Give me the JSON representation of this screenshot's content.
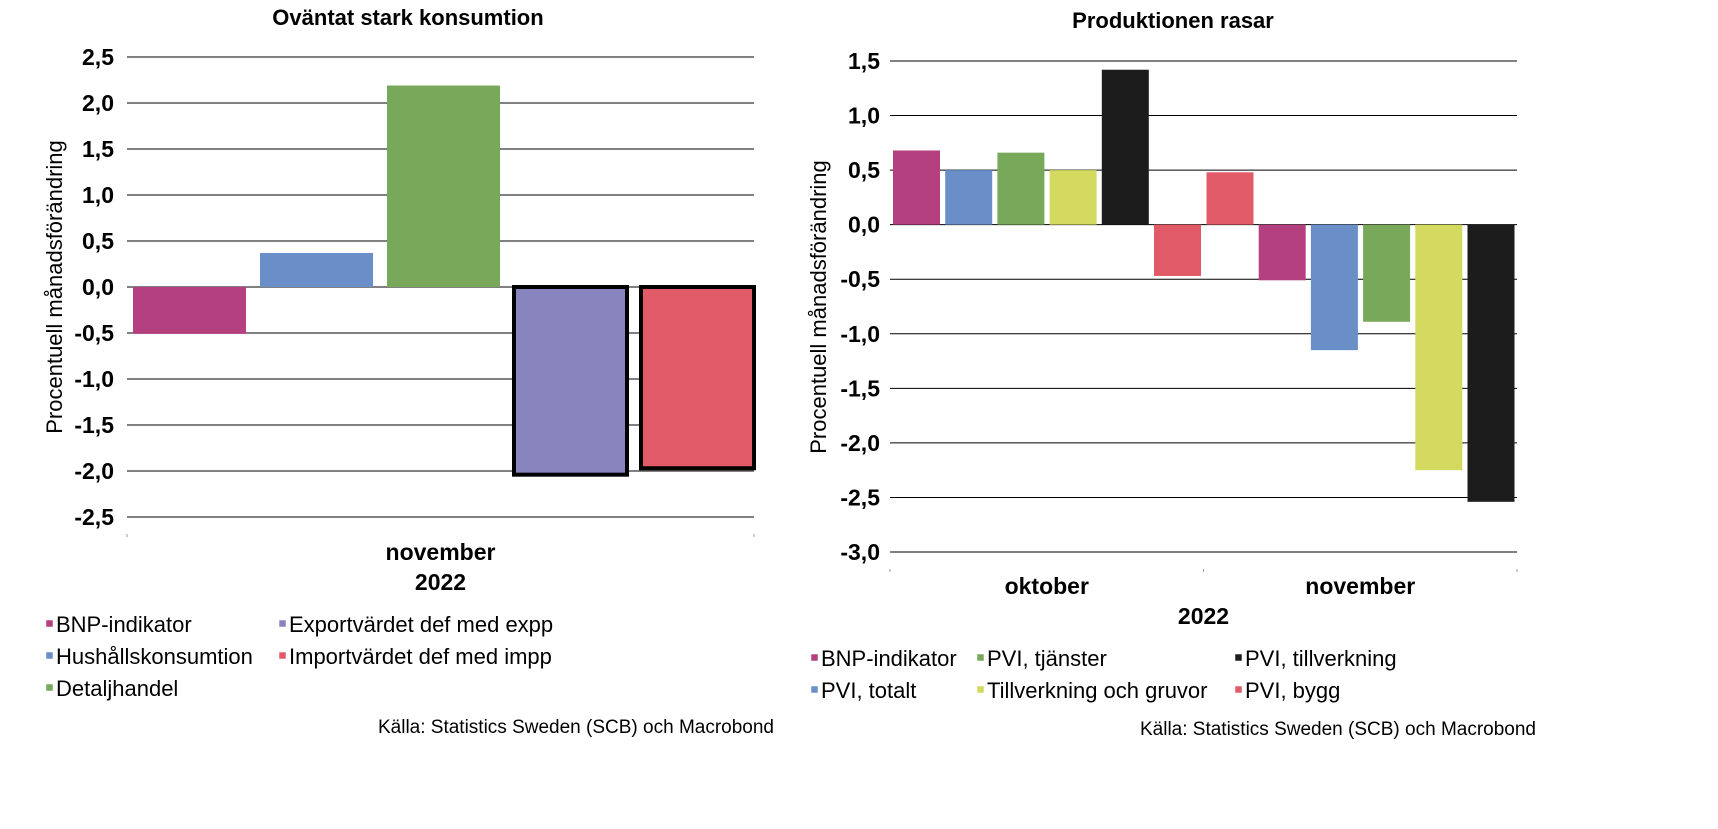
{
  "charts": [
    {
      "source": "Källa: Statistics Sweden (SCB) och Macrobond",
      "chart_data": {
        "type": "bar",
        "title": "Oväntat stark konsumtion",
        "ylabel": "Procentuell månadsförändring",
        "xlabel": "",
        "ylim": [
          -2.5,
          2.5
        ],
        "yticks": [
          "2,5",
          "2,0",
          "1,5",
          "1,0",
          "0,5",
          "0,0",
          "-0,5",
          "-1,0",
          "-1,5",
          "-2,0",
          "-2,5"
        ],
        "ytick_values": [
          2.5,
          2.0,
          1.5,
          1.0,
          0.5,
          0.0,
          -0.5,
          -1.0,
          -1.5,
          -2.0,
          -2.5
        ],
        "categories": [
          "november"
        ],
        "year_label": "2022",
        "grid": true,
        "legend_position": "bottom",
        "series": [
          {
            "name": "BNP-indikator",
            "color": "#b5407f",
            "values": [
              -0.51
            ],
            "outlined": false
          },
          {
            "name": "Hushållskonsumtion",
            "color": "#6a8fc8",
            "values": [
              0.37
            ],
            "outlined": false
          },
          {
            "name": "Detaljhandel",
            "color": "#78a85a",
            "values": [
              2.19
            ],
            "outlined": false
          },
          {
            "name": "Exportvärdet def med expp",
            "color": "#8884bd",
            "values": [
              -2.04
            ],
            "outlined": true
          },
          {
            "name": "Importvärdet def med impp",
            "color": "#e05a68",
            "values": [
              -1.97
            ],
            "outlined": true
          }
        ],
        "legend": [
          [
            "BNP-indikator",
            "Exportvärdet def med expp"
          ],
          [
            "Hushållskonsumtion",
            "Importvärdet def med impp"
          ],
          [
            "Detaljhandel"
          ]
        ]
      }
    },
    {
      "source": "Källa: Statistics Sweden (SCB) och Macrobond",
      "chart_data": {
        "type": "bar",
        "title": "Produktionen rasar",
        "ylabel": "Procentuell månadsförändring",
        "xlabel": "",
        "ylim": [
          -3.0,
          1.5
        ],
        "yticks": [
          "1,5",
          "1,0",
          "0,5",
          "0,0",
          "-0,5",
          "-1,0",
          "-1,5",
          "-2,0",
          "-2,5",
          "-3,0"
        ],
        "ytick_values": [
          1.5,
          1.0,
          0.5,
          0.0,
          -0.5,
          -1.0,
          -1.5,
          -2.0,
          -2.5,
          -3.0
        ],
        "categories": [
          "oktober",
          "november"
        ],
        "year_label": "2022",
        "grid": true,
        "legend_position": "bottom",
        "bar_order": [
          [
            "BNP-indikator",
            "PVI, totalt",
            "PVI, tjänster",
            "Tillverkning och gruvor",
            "PVI, tillverkning",
            "PVI, bygg"
          ],
          [
            "PVI, bygg",
            "BNP-indikator",
            "PVI, totalt",
            "PVI, tjänster",
            "Tillverkning och gruvor",
            "PVI, tillverkning"
          ]
        ],
        "series": [
          {
            "name": "BNP-indikator",
            "color": "#b5407f",
            "values": [
              0.68,
              -0.51
            ]
          },
          {
            "name": "PVI, totalt",
            "color": "#6a8fc8",
            "values": [
              0.5,
              -1.15
            ]
          },
          {
            "name": "PVI, tjänster",
            "color": "#78a85a",
            "values": [
              0.66,
              -0.89
            ]
          },
          {
            "name": "Tillverkning och gruvor",
            "color": "#d4d960",
            "values": [
              0.5,
              -2.25
            ]
          },
          {
            "name": "PVI, tillverkning",
            "color": "#1c1c1c",
            "values": [
              1.42,
              -2.54
            ]
          },
          {
            "name": "PVI, bygg",
            "color": "#e05a68",
            "values": [
              -0.47,
              0.48
            ]
          }
        ],
        "legend": [
          [
            "BNP-indikator",
            "PVI, tjänster",
            "PVI, tillverkning"
          ],
          [
            "PVI, totalt",
            "Tillverkning och gruvor",
            "PVI, bygg"
          ]
        ]
      }
    }
  ]
}
